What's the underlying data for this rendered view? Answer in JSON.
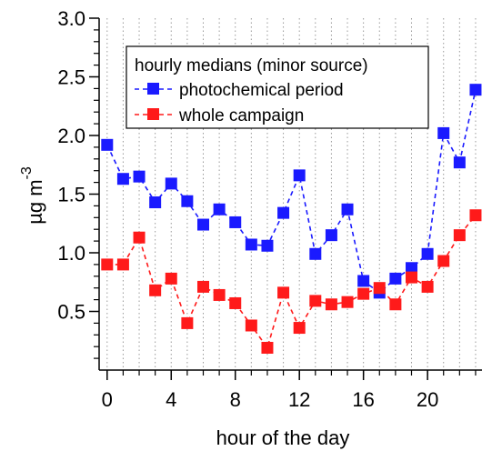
{
  "chart_data": {
    "type": "line",
    "xlabel": "hour of the day",
    "ylabel_main": "µg m",
    "ylabel_sup": "-3",
    "xlim": [
      -0.5,
      23.4
    ],
    "ylim": [
      0,
      3.0
    ],
    "xticks": [
      0,
      4,
      8,
      12,
      16,
      20
    ],
    "xtick_labels": [
      "0",
      "4",
      "8",
      "12",
      "16",
      "20"
    ],
    "xminor_ticks": [
      0,
      1,
      2,
      3,
      4,
      5,
      6,
      7,
      8,
      9,
      10,
      11,
      12,
      13,
      14,
      15,
      16,
      17,
      18,
      19,
      20,
      21,
      22,
      23
    ],
    "yticks": [
      0.5,
      1.0,
      1.5,
      2.0,
      2.5,
      3.0
    ],
    "ytick_labels": [
      "0.5",
      "1.0",
      "1.5",
      "2.0",
      "2.5",
      "3.0"
    ],
    "grid": "vertical dotted at every hour",
    "legend": {
      "title": "hourly medians (minor source)",
      "placement": "top-center"
    },
    "x": [
      0,
      1,
      2,
      3,
      4,
      5,
      6,
      7,
      8,
      9,
      10,
      11,
      12,
      13,
      14,
      15,
      16,
      17,
      18,
      19,
      20,
      21,
      22,
      23
    ],
    "series": [
      {
        "name": "photochemical period",
        "color": "#1a1aff",
        "marker": "square",
        "line": "dashed",
        "values": [
          1.92,
          1.63,
          1.65,
          1.43,
          1.59,
          1.44,
          1.24,
          1.37,
          1.26,
          1.07,
          1.06,
          1.34,
          1.66,
          0.99,
          1.15,
          1.37,
          0.76,
          0.66,
          0.78,
          0.87,
          0.99,
          2.02,
          1.77,
          2.39
        ]
      },
      {
        "name": "whole campaign",
        "color": "#ff1a1a",
        "marker": "square",
        "line": "dashed",
        "values": [
          0.9,
          0.9,
          1.13,
          0.68,
          0.78,
          0.4,
          0.71,
          0.64,
          0.57,
          0.38,
          0.19,
          0.66,
          0.36,
          0.59,
          0.56,
          0.58,
          0.65,
          0.7,
          0.56,
          0.79,
          0.71,
          0.93,
          1.15,
          1.32
        ]
      }
    ]
  }
}
